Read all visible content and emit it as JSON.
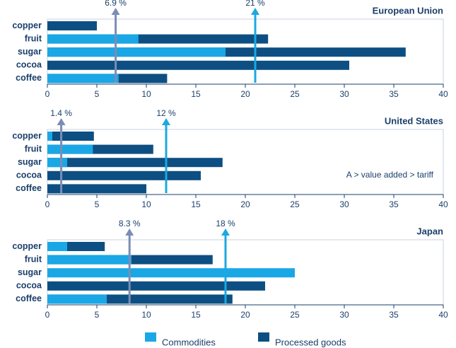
{
  "chart_data": [
    {
      "type": "bar",
      "title": "European Union",
      "categories": [
        "copper",
        "fruit",
        "sugar",
        "cocoa",
        "coffee"
      ],
      "series": [
        {
          "values": [
            0,
            9.2,
            18,
            0,
            7.2
          ]
        },
        {
          "values": [
            5,
            22.3,
            36.2,
            30.5,
            12.1
          ]
        }
      ],
      "xlim": [
        0,
        40
      ],
      "xticks": [
        0,
        5,
        10,
        15,
        20,
        25,
        30,
        35,
        40
      ],
      "annotations": [
        {
          "value": 6.9,
          "label": "6.9 %",
          "color": "#7b8db5"
        },
        {
          "value": 21,
          "label": "21 %",
          "color": "#1ca8e0"
        }
      ]
    },
    {
      "type": "bar",
      "title": "United States",
      "categories": [
        "copper",
        "fruit",
        "sugar",
        "cocoa",
        "coffee"
      ],
      "series": [
        {
          "values": [
            0.5,
            4.6,
            2,
            0,
            0
          ]
        },
        {
          "values": [
            4.7,
            10.7,
            17.7,
            15.5,
            10
          ]
        }
      ],
      "xlim": [
        0,
        40
      ],
      "xticks": [
        0,
        5,
        10,
        15,
        20,
        25,
        30,
        35,
        40
      ],
      "annotations": [
        {
          "value": 1.4,
          "label": "1.4 %",
          "color": "#7b8db5"
        },
        {
          "value": 12,
          "label": "12 %",
          "color": "#1ca8e0"
        }
      ],
      "note": "A > value added > tariff"
    },
    {
      "type": "bar",
      "title": "Japan",
      "categories": [
        "copper",
        "fruit",
        "sugar",
        "cocoa",
        "coffee"
      ],
      "series": [
        {
          "values": [
            2,
            8.5,
            25,
            0,
            6
          ]
        },
        {
          "values": [
            5.8,
            16.7,
            0,
            22,
            18.7
          ]
        }
      ],
      "xlim": [
        0,
        40
      ],
      "xticks": [
        0,
        5,
        10,
        15,
        20,
        25,
        30,
        35,
        40
      ],
      "annotations": [
        {
          "value": 8.3,
          "label": "8.3 %",
          "color": "#7b8db5"
        },
        {
          "value": 18,
          "label": "18 %",
          "color": "#1ca8e0"
        }
      ]
    }
  ],
  "legend": [
    {
      "name": "Commodities",
      "color": "#1aa7e6"
    },
    {
      "name": "Processed goods",
      "color": "#0d4f82"
    }
  ]
}
